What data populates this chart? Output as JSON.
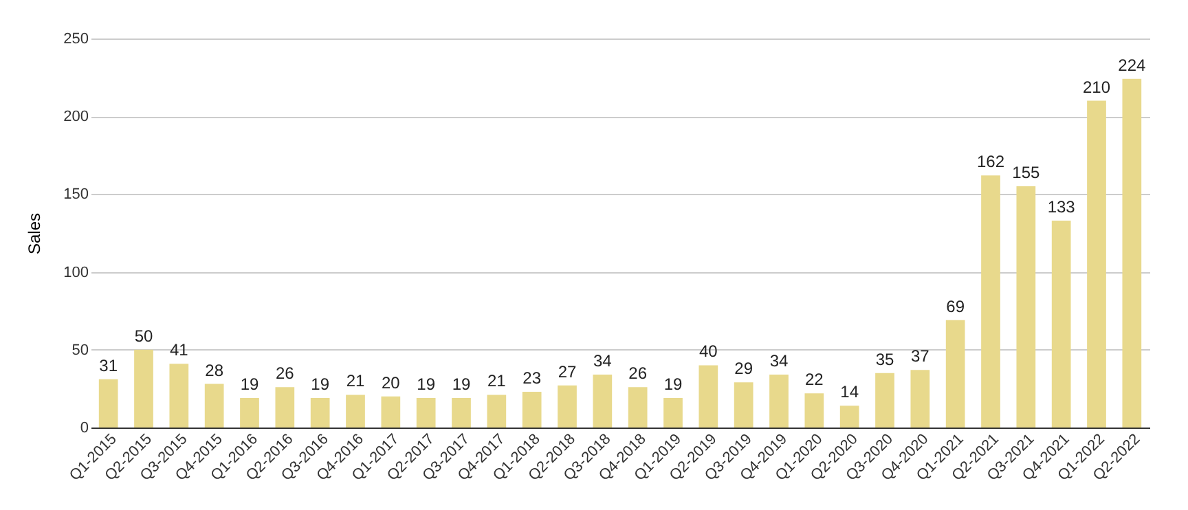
{
  "chart_data": {
    "type": "bar",
    "ylabel": "Sales",
    "categories": [
      "Q1-2015",
      "Q2-2015",
      "Q3-2015",
      "Q4-2015",
      "Q1-2016",
      "Q2-2016",
      "Q3-2016",
      "Q4-2016",
      "Q1-2017",
      "Q2-2017",
      "Q3-2017",
      "Q4-2017",
      "Q1-2018",
      "Q2-2018",
      "Q3-2018",
      "Q4-2018",
      "Q1-2019",
      "Q2-2019",
      "Q3-2019",
      "Q4-2019",
      "Q1-2020",
      "Q2-2020",
      "Q3-2020",
      "Q4-2020",
      "Q1-2021",
      "Q2-2021",
      "Q3-2021",
      "Q4-2021",
      "Q1-2022",
      "Q2-2022"
    ],
    "values": [
      31,
      50,
      41,
      28,
      19,
      26,
      19,
      21,
      20,
      19,
      19,
      21,
      23,
      27,
      34,
      26,
      19,
      40,
      29,
      34,
      22,
      14,
      35,
      37,
      69,
      162,
      155,
      133,
      210,
      224
    ],
    "color": "#e8d98c",
    "ylim": [
      0,
      250
    ],
    "yticks": [
      0,
      50,
      100,
      150,
      200,
      250
    ],
    "grid": "y",
    "data_labels": true
  }
}
